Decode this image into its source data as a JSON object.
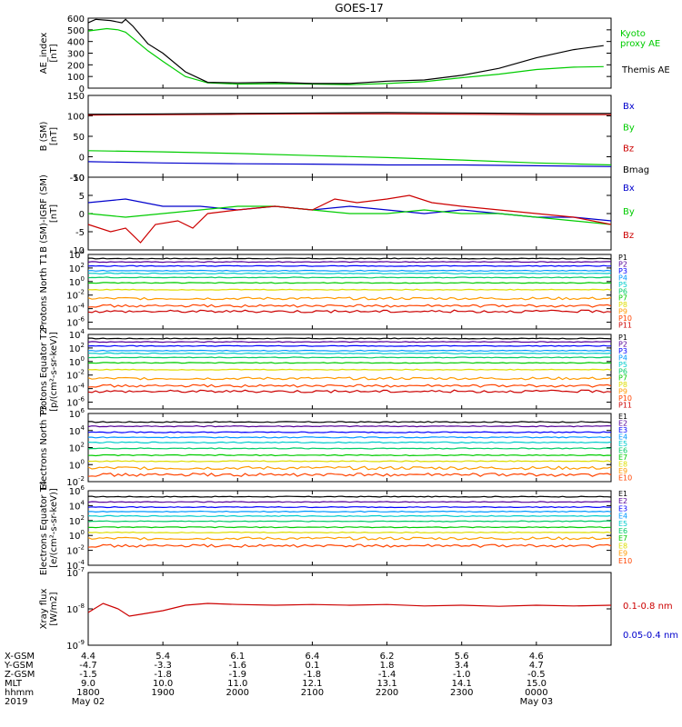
{
  "title": "GOES-17",
  "colors": {
    "black": "#000000",
    "green": "#00cc00",
    "blue": "#0000cc",
    "red": "#cc0000",
    "P": [
      "#000000",
      "#550099",
      "#0000ff",
      "#0099ff",
      "#00cccc",
      "#00cc66",
      "#00cc00",
      "#dddd00",
      "#ff9900",
      "#ff4400",
      "#cc0000"
    ],
    "E": [
      "#000000",
      "#550099",
      "#0000ff",
      "#0099ff",
      "#00cccc",
      "#00cc66",
      "#00cc00",
      "#dddd00",
      "#ff9900",
      "#ff4400",
      "#cc0000"
    ]
  },
  "footer": {
    "row_labels": [
      "X-GSM",
      "Y-GSM",
      "Z-GSM",
      "MLT",
      "hhmm",
      "2019"
    ],
    "columns": [
      [
        "4.4",
        "-4.7",
        "-1.5",
        "9.0",
        "1800",
        "May 02"
      ],
      [
        "5.4",
        "-3.3",
        "-1.8",
        "10.0",
        "1900",
        ""
      ],
      [
        "6.1",
        "-1.6",
        "-1.9",
        "11.0",
        "2000",
        ""
      ],
      [
        "6.4",
        "0.1",
        "-1.8",
        "12.1",
        "2100",
        ""
      ],
      [
        "6.2",
        "1.8",
        "-1.4",
        "13.1",
        "2200",
        ""
      ],
      [
        "5.6",
        "3.4",
        "-1.0",
        "14.1",
        "2300",
        ""
      ],
      [
        "4.6",
        "4.7",
        "-0.5",
        "15.0",
        "0000",
        "May 03"
      ]
    ]
  },
  "chart_data": [
    {
      "type": "line",
      "panel": "ae",
      "ylabel": "AE_index [nT]",
      "ylim": [
        0,
        600
      ],
      "yticks": [
        "0",
        "100",
        "200",
        "300",
        "400",
        "500",
        "600"
      ],
      "x": [
        "1800",
        "1900",
        "2000",
        "2100",
        "2200",
        "2300",
        "0000"
      ],
      "series": [
        {
          "name": "Kyoto proxy AE",
          "color": "#00cc00",
          "points": [
            [
              0,
              490
            ],
            [
              0.25,
              510
            ],
            [
              0.4,
              500
            ],
            [
              0.5,
              480
            ],
            [
              0.8,
              320
            ],
            [
              1.0,
              230
            ],
            [
              1.3,
              100
            ],
            [
              1.6,
              45
            ],
            [
              2.0,
              35
            ],
            [
              2.5,
              38
            ],
            [
              3.0,
              35
            ],
            [
              3.5,
              30
            ],
            [
              4.0,
              40
            ],
            [
              4.5,
              55
            ],
            [
              5.0,
              90
            ],
            [
              5.5,
              120
            ],
            [
              6.0,
              160
            ],
            [
              6.5,
              180
            ],
            [
              6.9,
              185
            ]
          ]
        },
        {
          "name": "Themis AE",
          "color": "#000000",
          "points": [
            [
              0,
              560
            ],
            [
              0.1,
              590
            ],
            [
              0.3,
              580
            ],
            [
              0.45,
              560
            ],
            [
              0.5,
              590
            ],
            [
              0.6,
              530
            ],
            [
              0.8,
              380
            ],
            [
              1.0,
              300
            ],
            [
              1.3,
              140
            ],
            [
              1.6,
              50
            ],
            [
              2.0,
              45
            ],
            [
              2.5,
              50
            ],
            [
              3.0,
              40
            ],
            [
              3.5,
              40
            ],
            [
              4.0,
              60
            ],
            [
              4.5,
              70
            ],
            [
              5.0,
              110
            ],
            [
              5.5,
              170
            ],
            [
              6.0,
              260
            ],
            [
              6.5,
              330
            ],
            [
              6.9,
              365
            ]
          ]
        }
      ],
      "legend": [
        "Kyoto proxy AE",
        "Themis AE"
      ]
    },
    {
      "type": "line",
      "panel": "b",
      "ylabel": "B (SM) [nT]",
      "ylim": [
        -50,
        150
      ],
      "yticks": [
        "-50",
        "0",
        "50",
        "100",
        "150"
      ],
      "series": [
        {
          "name": "Bx",
          "color": "#0000cc",
          "points": [
            [
              0,
              -12
            ],
            [
              1,
              -15
            ],
            [
              2,
              -17
            ],
            [
              3,
              -18
            ],
            [
              4,
              -20
            ],
            [
              5,
              -20
            ],
            [
              6,
              -22
            ],
            [
              7,
              -24
            ]
          ]
        },
        {
          "name": "By",
          "color": "#00cc00",
          "points": [
            [
              0,
              15
            ],
            [
              1,
              12
            ],
            [
              2,
              8
            ],
            [
              3,
              3
            ],
            [
              4,
              -2
            ],
            [
              5,
              -8
            ],
            [
              6,
              -15
            ],
            [
              7,
              -20
            ]
          ]
        },
        {
          "name": "Bz",
          "color": "#cc0000",
          "points": [
            [
              0,
              102
            ],
            [
              1,
              103
            ],
            [
              2,
              104
            ],
            [
              3,
              105
            ],
            [
              4,
              105
            ],
            [
              5,
              104
            ],
            [
              6,
              103
            ],
            [
              7,
              103
            ]
          ]
        },
        {
          "name": "Bmag",
          "color": "#000000",
          "points": [
            [
              0,
              104
            ],
            [
              1,
              105
            ],
            [
              2,
              106
            ],
            [
              3,
              107
            ],
            [
              4,
              108
            ],
            [
              5,
              107
            ],
            [
              6,
              106
            ],
            [
              7,
              106
            ]
          ]
        }
      ],
      "legend": [
        "Bx",
        "By",
        "Bz",
        "Bmag"
      ]
    },
    {
      "type": "line",
      "panel": "db",
      "ylabel": "B (SM)-IGRF (SM) [nT]",
      "ylim": [
        -10,
        10
      ],
      "yticks": [
        "-10",
        "-5",
        "0",
        "5",
        "10"
      ],
      "series": [
        {
          "name": "Bx",
          "color": "#0000cc",
          "points": [
            [
              0,
              3
            ],
            [
              0.5,
              4
            ],
            [
              1,
              2
            ],
            [
              1.5,
              2
            ],
            [
              2,
              1
            ],
            [
              2.5,
              2
            ],
            [
              3,
              1
            ],
            [
              3.5,
              2
            ],
            [
              4,
              1
            ],
            [
              4.5,
              0
            ],
            [
              5,
              1
            ],
            [
              5.5,
              0
            ],
            [
              6,
              -1
            ],
            [
              6.5,
              -1
            ],
            [
              7,
              -2
            ]
          ]
        },
        {
          "name": "By",
          "color": "#00cc00",
          "points": [
            [
              0,
              0
            ],
            [
              0.5,
              -1
            ],
            [
              1,
              0
            ],
            [
              1.5,
              1
            ],
            [
              2,
              2
            ],
            [
              2.5,
              2
            ],
            [
              3,
              1
            ],
            [
              3.5,
              0
            ],
            [
              4,
              0
            ],
            [
              4.5,
              1
            ],
            [
              5,
              0
            ],
            [
              5.5,
              0
            ],
            [
              6,
              -1
            ],
            [
              6.5,
              -2
            ],
            [
              7,
              -3
            ]
          ]
        },
        {
          "name": "Bz",
          "color": "#cc0000",
          "points": [
            [
              0,
              -3
            ],
            [
              0.3,
              -5
            ],
            [
              0.5,
              -4
            ],
            [
              0.7,
              -8
            ],
            [
              0.9,
              -3
            ],
            [
              1.2,
              -2
            ],
            [
              1.4,
              -4
            ],
            [
              1.6,
              0
            ],
            [
              2,
              1
            ],
            [
              2.5,
              2
            ],
            [
              3,
              1
            ],
            [
              3.3,
              4
            ],
            [
              3.6,
              3
            ],
            [
              4,
              4
            ],
            [
              4.3,
              5
            ],
            [
              4.6,
              3
            ],
            [
              5,
              2
            ],
            [
              5.5,
              1
            ],
            [
              6,
              0
            ],
            [
              6.5,
              -1
            ],
            [
              7,
              -3
            ]
          ]
        }
      ],
      "legend": [
        "Bx",
        "By",
        "Bz"
      ]
    },
    {
      "type": "line",
      "panel": "p1",
      "ylabel": "Protons North T1",
      "yscale": "log",
      "ylim": [
        -7,
        4
      ],
      "yticks": [
        "10^4",
        "10^2",
        "10^0",
        "10^-2",
        "10^-4",
        "10^-6"
      ],
      "channels": [
        "P1",
        "P2",
        "P3",
        "P4",
        "P5",
        "P6",
        "P7",
        "P8",
        "P9",
        "P10",
        "P11"
      ],
      "levels_log10": [
        3.4,
        2.9,
        2.3,
        1.6,
        1.2,
        0.6,
        -0.2,
        -1.2,
        -2.5,
        -3.6,
        -4.4
      ]
    },
    {
      "type": "line",
      "panel": "p2",
      "ylabel": "Protons Equator T2 [p/(cm²-s-sr-keV)]",
      "yscale": "log",
      "ylim": [
        -7,
        4
      ],
      "yticks": [
        "10^4",
        "10^2",
        "10^0",
        "10^-2",
        "10^-4",
        "10^-6"
      ],
      "channels": [
        "P1",
        "P2",
        "P3",
        "P4",
        "P5",
        "P6",
        "P7",
        "P8",
        "P9",
        "P10",
        "P11"
      ],
      "levels_log10": [
        3.4,
        2.9,
        2.3,
        1.6,
        1.2,
        0.6,
        -0.2,
        -1.2,
        -2.5,
        -3.6,
        -4.4
      ]
    },
    {
      "type": "line",
      "panel": "e1",
      "ylabel": "Electrons North T3",
      "yscale": "log",
      "ylim": [
        -2,
        6
      ],
      "yticks": [
        "10^6",
        "10^4",
        "10^2",
        "10^0",
        "10^-2"
      ],
      "channels": [
        "E1",
        "E2",
        "E3",
        "E4",
        "E5",
        "E6",
        "E7",
        "E8",
        "E9",
        "E10"
      ],
      "levels_log10": [
        5.0,
        4.5,
        3.8,
        3.2,
        2.6,
        1.9,
        1.1,
        0.4,
        -0.4,
        -1.2
      ]
    },
    {
      "type": "line",
      "panel": "e2",
      "ylabel": "Electrons Equator T4 [e/(cm²-s-sr-keV)]",
      "yscale": "log",
      "ylim": [
        -4,
        6
      ],
      "yticks": [
        "10^6",
        "10^4",
        "10^2",
        "10^0",
        "10^-2",
        "10^-4"
      ],
      "channels": [
        "E1",
        "E2",
        "E3",
        "E4",
        "E5",
        "E6",
        "E7",
        "E8",
        "E9",
        "E10"
      ],
      "levels_log10": [
        5.2,
        4.5,
        3.8,
        3.2,
        2.6,
        1.9,
        1.1,
        0.4,
        -0.4,
        -1.4
      ]
    },
    {
      "type": "line",
      "panel": "xray",
      "ylabel": "Xray flux [W/m2]",
      "yscale": "log",
      "ylim": [
        -9,
        -7
      ],
      "yticks": [
        "10^-7",
        "10^-8",
        "10^-9"
      ],
      "series": [
        {
          "name": "0.1-0.8 nm",
          "color": "#cc0000",
          "points": [
            [
              0,
              -8.1
            ],
            [
              0.2,
              -7.85
            ],
            [
              0.4,
              -8.0
            ],
            [
              0.55,
              -8.2
            ],
            [
              0.7,
              -8.15
            ],
            [
              1.0,
              -8.05
            ],
            [
              1.3,
              -7.9
            ],
            [
              1.6,
              -7.85
            ],
            [
              2.0,
              -7.88
            ],
            [
              2.5,
              -7.9
            ],
            [
              3.0,
              -7.88
            ],
            [
              3.5,
              -7.9
            ],
            [
              4.0,
              -7.88
            ],
            [
              4.5,
              -7.92
            ],
            [
              5.0,
              -7.9
            ],
            [
              5.5,
              -7.93
            ],
            [
              6.0,
              -7.9
            ],
            [
              6.5,
              -7.92
            ],
            [
              7.0,
              -7.9
            ]
          ]
        },
        {
          "name": "0.05-0.4 nm",
          "color": "#0000cc",
          "points": []
        }
      ],
      "legend": [
        "0.1-0.8 nm",
        "0.05-0.4 nm"
      ]
    }
  ]
}
